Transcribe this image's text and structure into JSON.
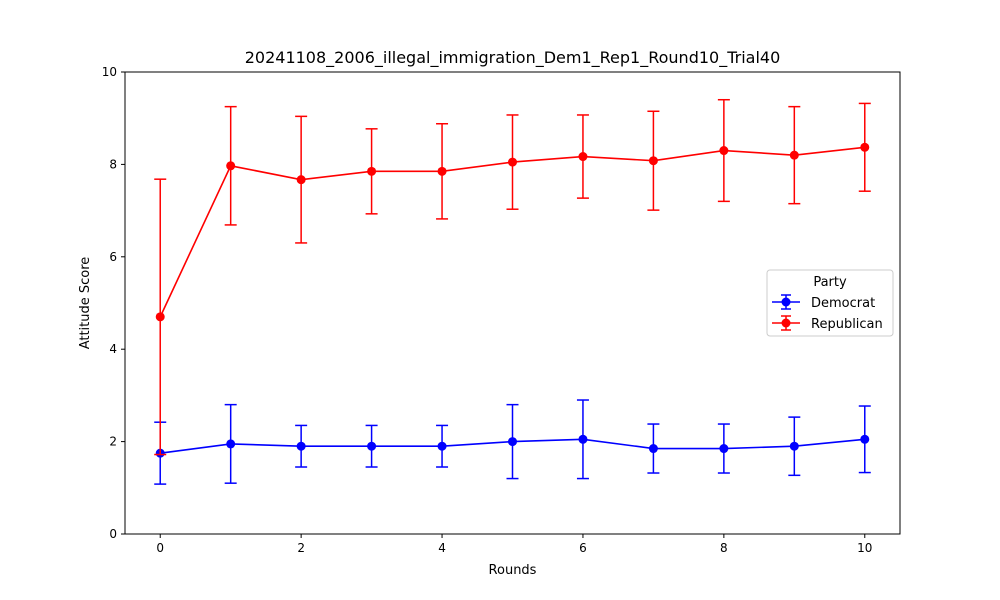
{
  "chart_data": {
    "type": "line",
    "title": "20241108_2006_illegal_immigration_Dem1_Rep1_Round10_Trial40",
    "xlabel": "Rounds",
    "ylabel": "Attitude Score",
    "xlim": [
      -0.5,
      10.5
    ],
    "ylim": [
      0,
      10
    ],
    "xticks": [
      "0",
      "2",
      "4",
      "6",
      "8",
      "10"
    ],
    "yticks": [
      "0",
      "2",
      "4",
      "6",
      "8",
      "10"
    ],
    "grid": false,
    "legend": {
      "title": "Party",
      "placement": "center-right"
    },
    "x": [
      0,
      1,
      2,
      3,
      4,
      5,
      6,
      7,
      8,
      9,
      10
    ],
    "series": [
      {
        "name": "Democrat",
        "color": "#0000ff",
        "values": [
          1.75,
          1.95,
          1.9,
          1.9,
          1.9,
          2.0,
          2.05,
          1.85,
          1.85,
          1.9,
          2.05
        ],
        "error": [
          0.67,
          0.85,
          0.45,
          0.45,
          0.45,
          0.8,
          0.85,
          0.53,
          0.53,
          0.63,
          0.72
        ]
      },
      {
        "name": "Republican",
        "color": "#ff0000",
        "values": [
          4.7,
          7.97,
          7.67,
          7.85,
          7.85,
          8.05,
          8.17,
          8.08,
          8.3,
          8.2,
          8.37
        ],
        "error": [
          2.98,
          1.28,
          1.37,
          0.92,
          1.03,
          1.02,
          0.9,
          1.07,
          1.1,
          1.05,
          0.95
        ]
      }
    ]
  }
}
